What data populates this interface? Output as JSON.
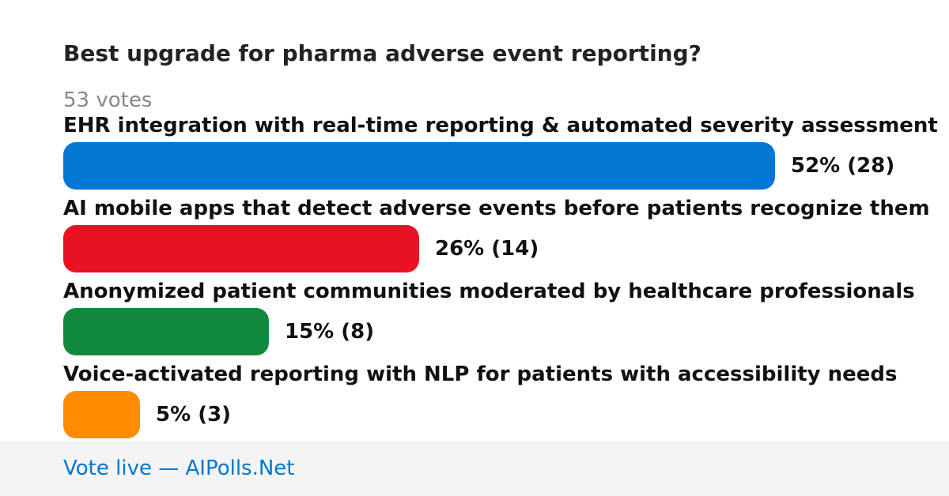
{
  "poll": {
    "title": "Best upgrade for pharma adverse event reporting?",
    "votes_label": "53 votes"
  },
  "footer": {
    "link_text": "Vote live — AIPolls.Net"
  },
  "colors": {
    "bar_1": "#0277d4",
    "bar_2": "#e81224",
    "bar_3": "#10893e",
    "bar_4": "#ff8c00",
    "link": "#0077cc",
    "footer_bg": "#f4f4f4"
  },
  "chart_data": {
    "type": "bar",
    "orientation": "horizontal",
    "title": "Best upgrade for pharma adverse event reporting?",
    "total_votes": 53,
    "categories": [
      "EHR integration with real-time reporting & automated severity assessment",
      "AI mobile apps that detect adverse events before patients recognize them",
      "Anonymized patient communities moderated by healthcare professionals",
      "Voice-activated reporting with NLP for patients with accessibility needs"
    ],
    "series": [
      {
        "values": [
          52,
          26,
          15,
          5
        ],
        "counts": [
          28,
          14,
          8,
          3
        ]
      }
    ],
    "value_labels": [
      "52% (28)",
      "26% (14)",
      "15% (8)",
      "5% (3)"
    ],
    "xlim": [
      0,
      100
    ]
  }
}
